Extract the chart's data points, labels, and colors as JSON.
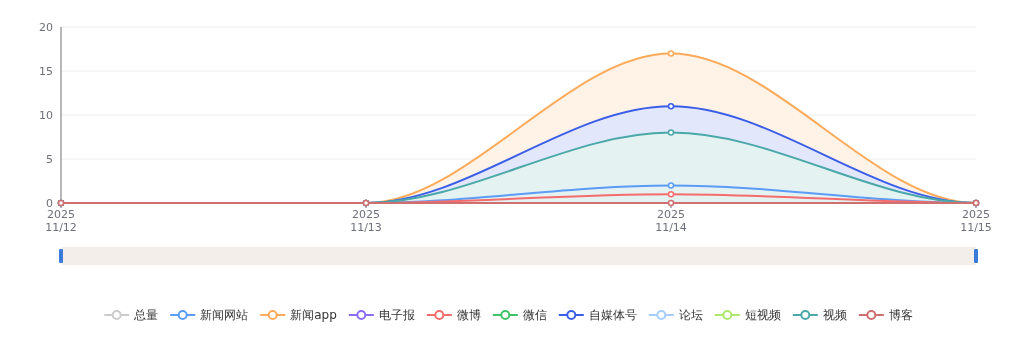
{
  "chart_data": {
    "type": "line",
    "x": [
      "2025-11-12",
      "2025-11-13",
      "2025-11-14",
      "2025-11-15"
    ],
    "xlim": [
      "2025-11-12",
      "2025-11-15"
    ],
    "xticks": [
      {
        "value": "2025-11-12",
        "label": "2025\n11/12"
      },
      {
        "value": "2025-11-13",
        "label": "2025\n11/13"
      },
      {
        "value": "2025-11-14",
        "label": "2025\n11/14"
      },
      {
        "value": "2025-11-15",
        "label": "2025\n11/15"
      }
    ],
    "ylim": [
      0,
      20
    ],
    "yticks": [
      0,
      5,
      10,
      15,
      20
    ],
    "grid": "y",
    "legend": "bottom",
    "marker": "circle",
    "line_style": "solid",
    "series": [
      {
        "name": "总量",
        "color": "#cccccc",
        "values": [
          null,
          null,
          null,
          null
        ]
      },
      {
        "name": "新闻网站",
        "color": "#5b9cf6",
        "values": [
          0,
          0,
          2,
          0
        ]
      },
      {
        "name": "新闻app",
        "color": "#fdab5a",
        "type": "area",
        "values": [
          0,
          0,
          17,
          0
        ]
      },
      {
        "name": "电子报",
        "color": "#8b6cf6",
        "values": [
          null,
          null,
          null,
          null
        ]
      },
      {
        "name": "微博",
        "color": "#f56c6c",
        "values": [
          0,
          0,
          1,
          0
        ]
      },
      {
        "name": "微信",
        "color": "#3ec36a",
        "values": [
          null,
          null,
          null,
          null
        ]
      },
      {
        "name": "自媒体号",
        "color": "#3b5ee8",
        "type": "area",
        "values": [
          0,
          0,
          11,
          0
        ]
      },
      {
        "name": "论坛",
        "color": "#a6cdfb",
        "values": [
          null,
          null,
          null,
          null
        ]
      },
      {
        "name": "短视频",
        "color": "#aee86b",
        "values": [
          null,
          null,
          null,
          null
        ]
      },
      {
        "name": "视频",
        "color": "#4aa8a8",
        "type": "area",
        "values": [
          0,
          0,
          8,
          0
        ]
      },
      {
        "name": "博客",
        "color": "#d06f6f",
        "values": [
          0,
          0,
          0,
          0
        ]
      }
    ]
  }
}
